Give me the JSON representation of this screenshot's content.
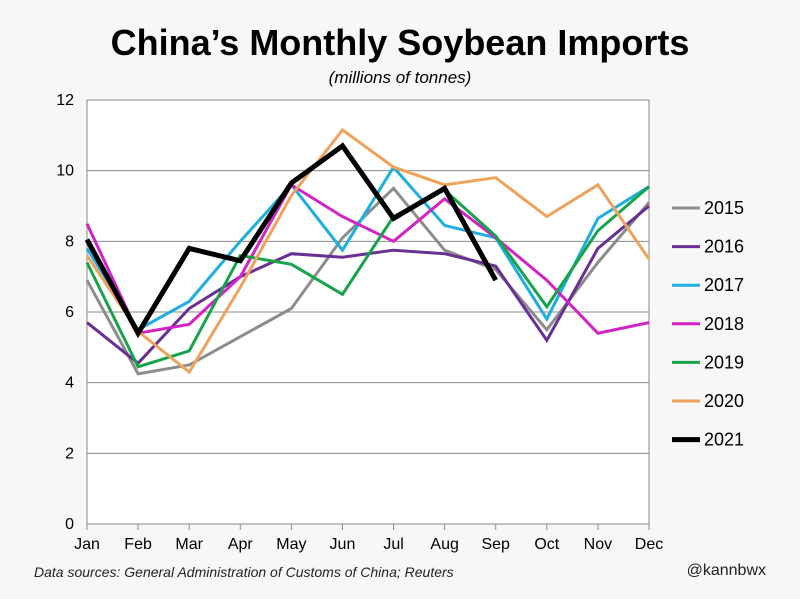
{
  "chart_data": {
    "type": "line",
    "title": "China’s Monthly Soybean Imports",
    "subtitle": "(millions of tonnes)",
    "xlabel": "",
    "ylabel": "",
    "categories": [
      "Jan",
      "Feb",
      "Mar",
      "Apr",
      "May",
      "Jun",
      "Jul",
      "Aug",
      "Sep",
      "Oct",
      "Nov",
      "Dec"
    ],
    "ylim": [
      0,
      12
    ],
    "yticks": [
      0,
      2,
      4,
      6,
      8,
      10,
      12
    ],
    "grid": true,
    "legend_position": "right",
    "series": [
      {
        "name": "2015",
        "color": "#8c8c8c",
        "width": "normal",
        "values": [
          6.9,
          4.25,
          4.5,
          5.3,
          6.1,
          8.1,
          9.5,
          7.75,
          7.2,
          5.5,
          7.4,
          9.1
        ]
      },
      {
        "name": "2016",
        "color": "#6a2f93",
        "width": "normal",
        "values": [
          5.7,
          4.55,
          6.1,
          7.0,
          7.65,
          7.55,
          7.75,
          7.65,
          7.3,
          5.2,
          7.8,
          9.0
        ]
      },
      {
        "name": "2017",
        "color": "#1eaee0",
        "width": "normal",
        "values": [
          7.8,
          5.5,
          6.3,
          8.0,
          9.6,
          7.75,
          10.1,
          8.45,
          8.1,
          5.8,
          8.65,
          9.55
        ]
      },
      {
        "name": "2018",
        "color": "#d223c6",
        "width": "normal",
        "values": [
          8.5,
          5.4,
          5.65,
          7.0,
          9.6,
          8.7,
          8.0,
          9.2,
          8.1,
          6.9,
          5.4,
          5.7
        ]
      },
      {
        "name": "2019",
        "color": "#17a34a",
        "width": "normal",
        "values": [
          7.4,
          4.45,
          4.9,
          7.6,
          7.35,
          6.5,
          8.7,
          9.45,
          8.15,
          6.15,
          8.3,
          9.55
        ]
      },
      {
        "name": "2020",
        "color": "#eea35c",
        "width": "normal",
        "values": [
          7.6,
          5.45,
          4.3,
          6.7,
          9.3,
          11.15,
          10.1,
          9.6,
          9.8,
          8.7,
          9.6,
          7.5
        ]
      },
      {
        "name": "2021",
        "color": "#000000",
        "width": "bold",
        "values": [
          8.05,
          5.4,
          7.8,
          7.45,
          9.65,
          10.7,
          8.65,
          9.5,
          6.9,
          null,
          null,
          null
        ]
      }
    ]
  },
  "footer": {
    "source": "Data sources: General Administration of Customs of China; Reuters",
    "handle": "@kannbwx"
  }
}
